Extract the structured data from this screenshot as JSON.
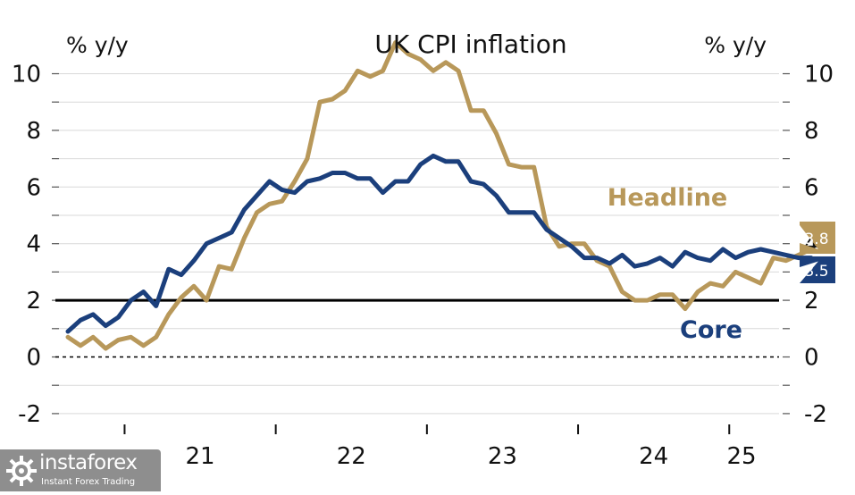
{
  "chart_data": {
    "type": "line",
    "title": "UK CPI inflation",
    "ylabel_left": "% y/y",
    "ylabel_right": "% y/y",
    "ylim": [
      -2,
      10
    ],
    "y_ticks": [
      -2,
      0,
      2,
      4,
      6,
      8,
      10
    ],
    "x_tick_labels": [
      "21",
      "22",
      "23",
      "24",
      "25"
    ],
    "grid": true,
    "reference_lines": [
      {
        "value": 2,
        "style": "solid"
      },
      {
        "value": 0,
        "style": "dashed"
      }
    ],
    "series": [
      {
        "name": "Headline",
        "color": "#b8985a",
        "end_label": "3.8",
        "x": [
          "2020-08",
          "2020-09",
          "2020-10",
          "2020-11",
          "2020-12",
          "2021-01",
          "2021-02",
          "2021-03",
          "2021-04",
          "2021-05",
          "2021-06",
          "2021-07",
          "2021-08",
          "2021-09",
          "2021-10",
          "2021-11",
          "2021-12",
          "2022-01",
          "2022-02",
          "2022-03",
          "2022-04",
          "2022-05",
          "2022-06",
          "2022-07",
          "2022-08",
          "2022-09",
          "2022-10",
          "2022-11",
          "2022-12",
          "2023-01",
          "2023-02",
          "2023-03",
          "2023-04",
          "2023-05",
          "2023-06",
          "2023-07",
          "2023-08",
          "2023-09",
          "2023-10",
          "2023-11",
          "2023-12",
          "2024-01",
          "2024-02",
          "2024-03",
          "2024-04",
          "2024-05",
          "2024-06",
          "2024-07",
          "2024-08",
          "2024-09",
          "2024-10",
          "2024-11",
          "2024-12",
          "2025-01",
          "2025-02",
          "2025-03",
          "2025-04",
          "2025-05",
          "2025-06",
          "2025-07"
        ],
        "values": [
          0.7,
          0.4,
          0.7,
          0.3,
          0.6,
          0.7,
          0.4,
          0.7,
          1.5,
          2.1,
          2.5,
          2.0,
          3.2,
          3.1,
          4.2,
          5.1,
          5.4,
          5.5,
          6.2,
          7.0,
          9.0,
          9.1,
          9.4,
          10.1,
          9.9,
          10.1,
          11.1,
          10.7,
          10.5,
          10.1,
          10.4,
          10.1,
          8.7,
          8.7,
          7.9,
          6.8,
          6.7,
          6.7,
          4.6,
          3.9,
          4.0,
          4.0,
          3.4,
          3.2,
          2.3,
          2.0,
          2.0,
          2.2,
          2.2,
          1.7,
          2.3,
          2.6,
          2.5,
          3.0,
          2.8,
          2.6,
          3.5,
          3.4,
          3.6,
          3.8
        ]
      },
      {
        "name": "Core",
        "color": "#1b3f7c",
        "end_label": "3.5",
        "x": [
          "2020-08",
          "2020-09",
          "2020-10",
          "2020-11",
          "2020-12",
          "2021-01",
          "2021-02",
          "2021-03",
          "2021-04",
          "2021-05",
          "2021-06",
          "2021-07",
          "2021-08",
          "2021-09",
          "2021-10",
          "2021-11",
          "2021-12",
          "2022-01",
          "2022-02",
          "2022-03",
          "2022-04",
          "2022-05",
          "2022-06",
          "2022-07",
          "2022-08",
          "2022-09",
          "2022-10",
          "2022-11",
          "2022-12",
          "2023-01",
          "2023-02",
          "2023-03",
          "2023-04",
          "2023-05",
          "2023-06",
          "2023-07",
          "2023-08",
          "2023-09",
          "2023-10",
          "2023-11",
          "2023-12",
          "2024-01",
          "2024-02",
          "2024-03",
          "2024-04",
          "2024-05",
          "2024-06",
          "2024-07",
          "2024-08",
          "2024-09",
          "2024-10",
          "2024-11",
          "2024-12",
          "2025-01",
          "2025-02",
          "2025-03",
          "2025-04",
          "2025-05",
          "2025-06",
          "2025-07"
        ],
        "values": [
          0.9,
          1.3,
          1.5,
          1.1,
          1.4,
          2.0,
          2.3,
          1.8,
          3.1,
          2.9,
          3.4,
          4.0,
          4.2,
          4.4,
          5.2,
          5.7,
          6.2,
          5.9,
          5.8,
          6.2,
          6.3,
          6.5,
          6.5,
          6.3,
          6.3,
          5.8,
          6.2,
          6.2,
          6.8,
          7.1,
          6.9,
          6.9,
          6.2,
          6.1,
          5.7,
          5.1,
          5.1,
          5.1,
          4.5,
          4.2,
          3.9,
          3.5,
          3.5,
          3.3,
          3.6,
          3.2,
          3.3,
          3.5,
          3.2,
          3.7,
          3.5,
          3.4,
          3.8,
          3.5,
          3.7,
          3.8,
          3.7,
          3.6,
          3.5,
          3.5
        ]
      }
    ]
  },
  "watermark": {
    "name": "instaforex",
    "tagline": "Instant Forex Trading"
  }
}
